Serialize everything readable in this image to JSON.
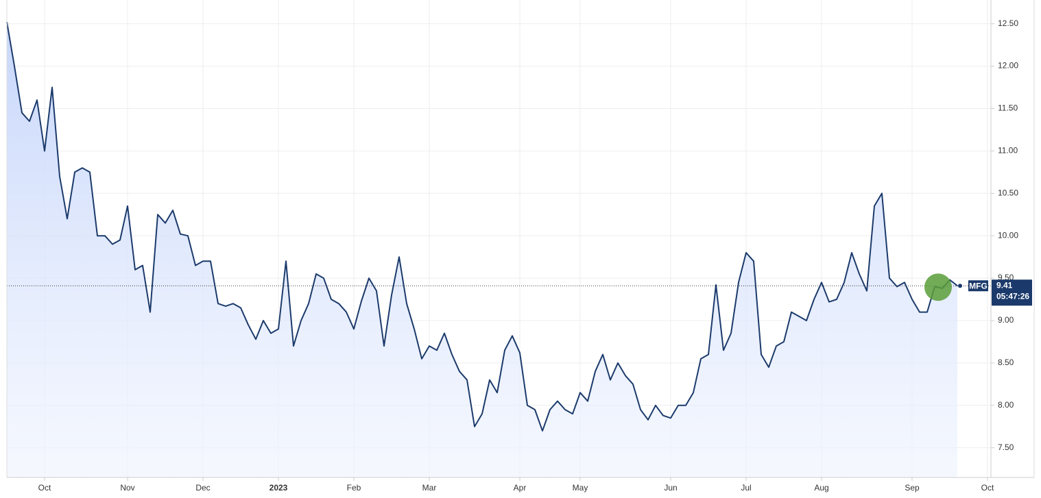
{
  "chart_data": {
    "type": "area",
    "color": "#1b3a6b",
    "categories": [
      null,
      null,
      null,
      null,
      null,
      "Oct",
      null,
      null,
      null,
      null,
      null,
      null,
      null,
      null,
      null,
      null,
      "Nov",
      null,
      null,
      null,
      null,
      null,
      null,
      null,
      null,
      null,
      "Dec",
      null,
      null,
      null,
      null,
      null,
      null,
      null,
      null,
      null,
      "2023",
      null,
      null,
      null,
      null,
      null,
      null,
      null,
      null,
      null,
      "Feb",
      null,
      null,
      null,
      null,
      null,
      null,
      null,
      null,
      null,
      "Mar",
      null,
      null,
      null,
      null,
      null,
      null,
      null,
      null,
      null,
      null,
      null,
      "Apr",
      null,
      null,
      null,
      null,
      null,
      null,
      null,
      "May",
      null,
      null,
      null,
      null,
      null,
      null,
      null,
      null,
      null,
      null,
      null,
      "Jun",
      null,
      null,
      null,
      null,
      null,
      null,
      null,
      null,
      null,
      "Jul",
      null,
      null,
      null,
      null,
      null,
      null,
      null,
      null,
      null,
      "Aug",
      null,
      null,
      null,
      null,
      null,
      null,
      null,
      null,
      null,
      null,
      null,
      "Sep",
      null,
      null,
      null,
      null,
      null,
      null,
      null,
      null,
      null,
      "Oct"
    ],
    "values": [
      12.52,
      12.0,
      11.45,
      11.35,
      11.6,
      11.0,
      11.75,
      10.7,
      10.2,
      10.75,
      10.8,
      10.75,
      10.0,
      10.0,
      9.9,
      9.95,
      10.35,
      9.6,
      9.65,
      9.1,
      10.25,
      10.15,
      10.3,
      10.02,
      10.0,
      9.65,
      9.7,
      9.7,
      9.2,
      9.17,
      9.2,
      9.15,
      8.95,
      8.78,
      9.0,
      8.85,
      8.9,
      9.7,
      8.7,
      9.0,
      9.2,
      9.55,
      9.5,
      9.25,
      9.2,
      9.1,
      8.9,
      9.23,
      9.5,
      9.35,
      8.7,
      9.3,
      9.75,
      9.2,
      8.9,
      8.55,
      8.7,
      8.65,
      8.85,
      8.6,
      8.4,
      8.3,
      7.75,
      7.9,
      8.3,
      8.15,
      8.65,
      8.82,
      8.62,
      8.0,
      7.95,
      7.7,
      7.95,
      8.05,
      7.95,
      7.9,
      8.15,
      8.05,
      8.4,
      8.6,
      8.3,
      8.5,
      8.35,
      8.25,
      7.95,
      7.83,
      8.0,
      7.88,
      7.85,
      8.0,
      8.0,
      8.15,
      8.55,
      8.6,
      9.42,
      8.65,
      8.85,
      9.45,
      9.8,
      9.7,
      8.6,
      8.45,
      8.7,
      8.75,
      9.1,
      9.05,
      9.0,
      9.25,
      9.45,
      9.22,
      9.25,
      9.45,
      9.8,
      9.55,
      9.35,
      10.35,
      10.5,
      9.5,
      9.4,
      9.45,
      9.25,
      9.1,
      9.1,
      9.4,
      9.38,
      9.48,
      9.41,
      null,
      null,
      null,
      null
    ],
    "ylim": [
      7.15,
      12.78
    ],
    "yticks": [
      {
        "value": 7.5,
        "label": "7.50"
      },
      {
        "value": 8,
        "label": "8.00"
      },
      {
        "value": 8.5,
        "label": "8.50"
      },
      {
        "value": 9,
        "label": "9.00"
      },
      {
        "value": 9.5,
        "label": "9.50"
      },
      {
        "value": 10,
        "label": "10.00"
      },
      {
        "value": 10.5,
        "label": "10.50"
      },
      {
        "value": 11,
        "label": "11.00"
      },
      {
        "value": 11.5,
        "label": "11.50"
      },
      {
        "value": 12,
        "label": "12.00"
      },
      {
        "value": 12.5,
        "label": "12.50"
      }
    ],
    "grid": true,
    "last_price": {
      "symbol": "MFG",
      "value": 9.41,
      "time": "05:47:26"
    }
  }
}
